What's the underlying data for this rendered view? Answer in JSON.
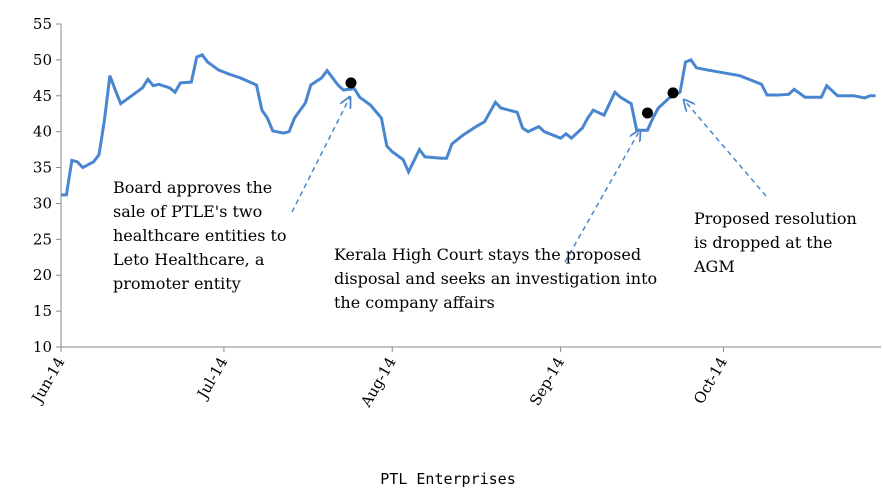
{
  "chart_data": {
    "type": "line",
    "title": "PTL Enterprises",
    "x": [
      0,
      1,
      2,
      3,
      4,
      6,
      7,
      8,
      9,
      10,
      11,
      13,
      15,
      16,
      17,
      18,
      20,
      21,
      22,
      24,
      25,
      26,
      27,
      29,
      31,
      33,
      36,
      37,
      38,
      39,
      41,
      42,
      43,
      45,
      46,
      48,
      49,
      51,
      52,
      54,
      55,
      57,
      59,
      60,
      61,
      63,
      64,
      66,
      67,
      70,
      71,
      72,
      74,
      76,
      78,
      80,
      81,
      84,
      85,
      86,
      88,
      89,
      92,
      93,
      94,
      96,
      97,
      98,
      100,
      102,
      103,
      105,
      106,
      108,
      109,
      110,
      112,
      114,
      115,
      116,
      117,
      119,
      122,
      125,
      127,
      129,
      130,
      132,
      134,
      135,
      137,
      140,
      141,
      143,
      146,
      148,
      149,
      150
    ],
    "series": [
      {
        "name": "PTL Enterprises",
        "color": "#4a86cf",
        "values": [
          31.2,
          31.2,
          36,
          35.8,
          35,
          35.8,
          36.8,
          41.6,
          47.8,
          45.8,
          43.9,
          45,
          46.1,
          47.3,
          46.4,
          46.6,
          46.1,
          45.5,
          46.8,
          46.9,
          50.4,
          50.7,
          49.7,
          48.6,
          48,
          47.5,
          46.5,
          43,
          41.9,
          40.1,
          39.8,
          40,
          41.9,
          44,
          46.5,
          47.5,
          48.5,
          46.5,
          45.8,
          46,
          44.8,
          43.7,
          41.9,
          38,
          37.2,
          36.1,
          34.4,
          37.5,
          36.5,
          36.3,
          36.3,
          38.3,
          39.5,
          40.5,
          41.4,
          44.1,
          43.3,
          42.7,
          40.5,
          40,
          40.7,
          40,
          39.1,
          39.7,
          39.1,
          40.5,
          41.9,
          43,
          42.3,
          45.5,
          44.8,
          43.9,
          40.2,
          40.2,
          41.9,
          43.3,
          44.7,
          45.5,
          49.7,
          50,
          48.9,
          48.6,
          48.2,
          47.8,
          47.2,
          46.6,
          45.1,
          45.1,
          45.2,
          45.9,
          44.8,
          44.8,
          46.4,
          45,
          45,
          44.7,
          45,
          45
        ]
      }
    ],
    "markers": {
      "x": [
        53.4,
        108,
        112.7
      ],
      "y": [
        46.8,
        42.6,
        45.4
      ]
    },
    "xlim": [
      0,
      151
    ],
    "xticks": [
      {
        "value": 0,
        "label": "Jun-14"
      },
      {
        "value": 30,
        "label": "Jul-14"
      },
      {
        "value": 61,
        "label": "Aug-14"
      },
      {
        "value": 92,
        "label": "Sep-14"
      },
      {
        "value": 122,
        "label": "Oct-14"
      }
    ],
    "ylim": [
      10,
      55
    ],
    "yticks": [
      10,
      15,
      20,
      25,
      30,
      35,
      40,
      45,
      50,
      55
    ],
    "annotations": [
      {
        "lines": [
          "Board approves the",
          "sale of PTLE's two",
          "healthcare entities to",
          "Leto Healthcare,  a",
          "promoter entity"
        ]
      },
      {
        "lines": [
          "Kerala High Court stays the proposed",
          "disposal and seeks an investigation into",
          "the company affairs"
        ]
      },
      {
        "lines": [
          "Proposed resolution",
          "is dropped at the",
          "AGM"
        ]
      }
    ]
  }
}
